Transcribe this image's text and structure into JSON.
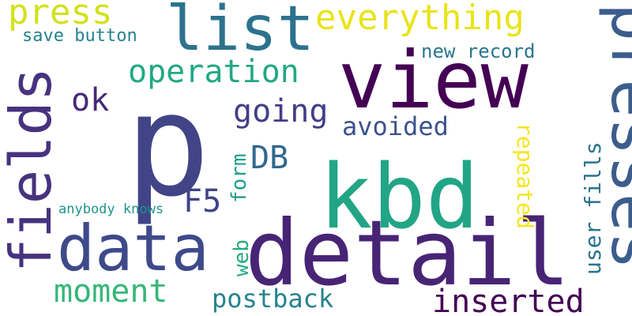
{
  "words": [
    {
      "text": "p",
      "color": "#414487"
    },
    {
      "text": "view",
      "color": "#440154"
    },
    {
      "text": "detail",
      "color": "#482475"
    },
    {
      "text": "kbd",
      "color": "#21a585"
    },
    {
      "text": "presses",
      "color": "#3b5d8c"
    },
    {
      "text": "fields",
      "color": "#46327e"
    },
    {
      "text": "data",
      "color": "#3e4a89"
    },
    {
      "text": "list",
      "color": "#2c728e"
    },
    {
      "text": "everything",
      "color": "#e8e419"
    },
    {
      "text": "press",
      "color": "#d2e21b"
    },
    {
      "text": "operation",
      "color": "#22a884"
    },
    {
      "text": "ok",
      "color": "#482878"
    },
    {
      "text": "going",
      "color": "#433e85"
    },
    {
      "text": "DB",
      "color": "#31688e"
    },
    {
      "text": "F5",
      "color": "#414487"
    },
    {
      "text": "avoided",
      "color": "#3b528b"
    },
    {
      "text": "moment",
      "color": "#35b779"
    },
    {
      "text": "postback",
      "color": "#25838e"
    },
    {
      "text": "inserted",
      "color": "#440154"
    },
    {
      "text": "user fills",
      "color": "#2c728e"
    },
    {
      "text": "repeated",
      "color": "#f4e61e"
    },
    {
      "text": "form",
      "color": "#1f9e89"
    },
    {
      "text": "web",
      "color": "#25ab82"
    },
    {
      "text": "new record",
      "color": "#2a768e"
    },
    {
      "text": "save button",
      "color": "#26828e"
    },
    {
      "text": "anybody knows",
      "color": "#1f948c"
    }
  ]
}
